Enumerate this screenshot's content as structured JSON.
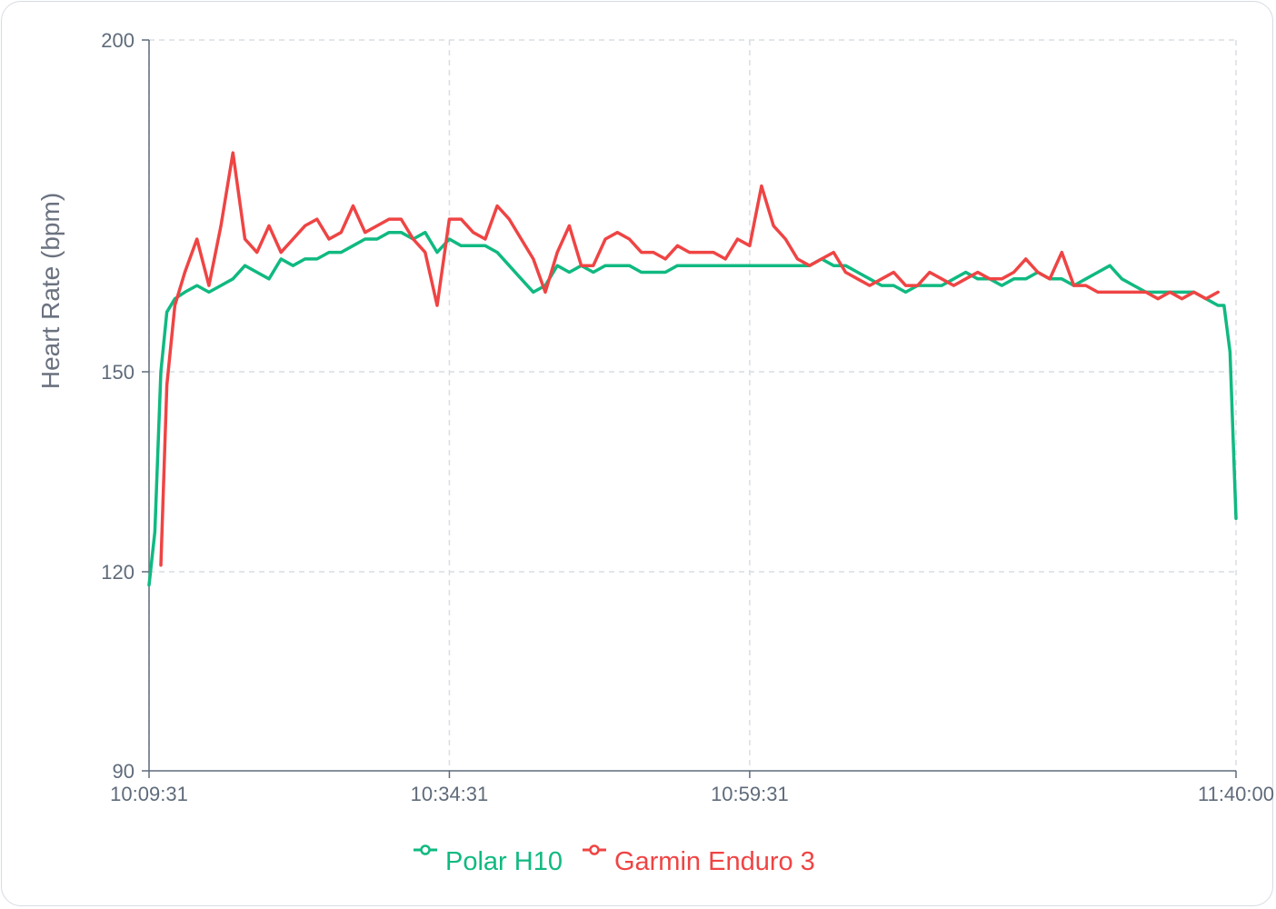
{
  "chart_data": {
    "type": "line",
    "ylabel": "Heart Rate (bpm)",
    "xlabel": "",
    "y_ticks": [
      "200",
      "150",
      "120",
      "90"
    ],
    "x_ticks": [
      "10:09:31",
      "10:34:31",
      "10:59:31",
      "11:40:00"
    ],
    "ylim": [
      90,
      200
    ],
    "xlim": [
      "10:09:31",
      "11:40:00"
    ],
    "grid": true,
    "legend_position": "bottom-center",
    "series": [
      {
        "name": "Polar H10",
        "color": "#10b981",
        "x": [
          "10:09:31",
          "10:10:00",
          "10:10:30",
          "10:11:00",
          "10:11:40",
          "10:12:30",
          "10:13:30",
          "10:14:30",
          "10:15:30",
          "10:16:30",
          "10:17:30",
          "10:18:30",
          "10:19:30",
          "10:20:30",
          "10:21:30",
          "10:22:30",
          "10:23:30",
          "10:24:30",
          "10:25:30",
          "10:26:30",
          "10:27:30",
          "10:28:30",
          "10:29:30",
          "10:30:30",
          "10:31:30",
          "10:32:30",
          "10:33:30",
          "10:34:31",
          "10:35:30",
          "10:36:30",
          "10:37:30",
          "10:38:30",
          "10:39:30",
          "10:40:30",
          "10:41:30",
          "10:42:30",
          "10:43:30",
          "10:44:30",
          "10:45:30",
          "10:46:30",
          "10:47:30",
          "10:48:30",
          "10:49:30",
          "10:50:30",
          "10:51:30",
          "10:52:30",
          "10:53:30",
          "10:54:30",
          "10:55:30",
          "10:56:30",
          "10:57:30",
          "10:58:30",
          "10:59:31",
          "11:00:30",
          "11:01:30",
          "11:02:30",
          "11:03:30",
          "11:04:30",
          "11:05:30",
          "11:06:30",
          "11:07:30",
          "11:08:30",
          "11:09:30",
          "11:10:30",
          "11:11:30",
          "11:12:30",
          "11:13:30",
          "11:14:30",
          "11:15:30",
          "11:16:30",
          "11:17:30",
          "11:18:30",
          "11:19:30",
          "11:20:30",
          "11:21:30",
          "11:22:30",
          "11:23:30",
          "11:24:30",
          "11:25:30",
          "11:26:30",
          "11:27:30",
          "11:28:30",
          "11:29:30",
          "11:30:30",
          "11:31:30",
          "11:32:30",
          "11:33:30",
          "11:34:30",
          "11:35:30",
          "11:36:30",
          "11:37:30",
          "11:38:30",
          "11:39:00",
          "11:39:30",
          "11:40:00"
        ],
        "y": [
          118,
          126,
          150,
          159,
          161,
          162,
          163,
          162,
          163,
          164,
          166,
          165,
          164,
          167,
          166,
          167,
          167,
          168,
          168,
          169,
          170,
          170,
          171,
          171,
          170,
          171,
          168,
          170,
          169,
          169,
          169,
          168,
          166,
          164,
          162,
          163,
          166,
          165,
          166,
          165,
          166,
          166,
          166,
          165,
          165,
          165,
          166,
          166,
          166,
          166,
          166,
          166,
          166,
          166,
          166,
          166,
          166,
          166,
          167,
          166,
          166,
          165,
          164,
          163,
          163,
          162,
          163,
          163,
          163,
          164,
          165,
          164,
          164,
          163,
          164,
          164,
          165,
          164,
          164,
          163,
          164,
          165,
          166,
          164,
          163,
          162,
          162,
          162,
          162,
          162,
          161,
          160,
          160,
          153,
          128
        ]
      },
      {
        "name": "Garmin Enduro 3",
        "color": "#ef4444",
        "x": [
          "10:09:31",
          "10:10:00",
          "10:10:30",
          "10:11:00",
          "10:11:40",
          "10:12:30",
          "10:13:30",
          "10:14:30",
          "10:15:30",
          "10:16:30",
          "10:17:30",
          "10:18:30",
          "10:19:30",
          "10:20:30",
          "10:21:30",
          "10:22:30",
          "10:23:30",
          "10:24:30",
          "10:25:30",
          "10:26:30",
          "10:27:30",
          "10:28:30",
          "10:29:30",
          "10:30:30",
          "10:31:30",
          "10:32:30",
          "10:33:30",
          "10:34:31",
          "10:35:30",
          "10:36:30",
          "10:37:30",
          "10:38:30",
          "10:39:30",
          "10:40:30",
          "10:41:30",
          "10:42:30",
          "10:43:30",
          "10:44:30",
          "10:45:30",
          "10:46:30",
          "10:47:30",
          "10:48:30",
          "10:49:30",
          "10:50:30",
          "10:51:30",
          "10:52:30",
          "10:53:30",
          "10:54:30",
          "10:55:30",
          "10:56:30",
          "10:57:30",
          "10:58:30",
          "10:59:31",
          "11:00:30",
          "11:01:30",
          "11:02:30",
          "11:03:30",
          "11:04:30",
          "11:05:30",
          "11:06:30",
          "11:07:30",
          "11:08:30",
          "11:09:30",
          "11:10:30",
          "11:11:30",
          "11:12:30",
          "11:13:30",
          "11:14:30",
          "11:15:30",
          "11:16:30",
          "11:17:30",
          "11:18:30",
          "11:19:30",
          "11:20:30",
          "11:21:30",
          "11:22:30",
          "11:23:30",
          "11:24:30",
          "11:25:30",
          "11:26:30",
          "11:27:30",
          "11:28:30",
          "11:29:30",
          "11:30:30",
          "11:31:30",
          "11:32:30",
          "11:33:30",
          "11:34:30",
          "11:35:30",
          "11:36:30",
          "11:37:30",
          "11:38:30",
          "11:39:00",
          "11:39:30",
          "11:40:00"
        ],
        "y": [
          null,
          null,
          121,
          148,
          160,
          165,
          170,
          163,
          172,
          183,
          170,
          168,
          172,
          168,
          170,
          172,
          173,
          170,
          171,
          175,
          171,
          172,
          173,
          173,
          170,
          168,
          160,
          173,
          173,
          171,
          170,
          175,
          173,
          170,
          167,
          162,
          168,
          172,
          166,
          166,
          170,
          171,
          170,
          168,
          168,
          167,
          169,
          168,
          168,
          168,
          167,
          170,
          169,
          178,
          172,
          170,
          167,
          166,
          167,
          168,
          165,
          164,
          163,
          164,
          165,
          163,
          163,
          165,
          164,
          163,
          164,
          165,
          164,
          164,
          165,
          167,
          165,
          164,
          168,
          163,
          163,
          162,
          162,
          162,
          162,
          162,
          161,
          162,
          161,
          162,
          161,
          162,
          null,
          null,
          null
        ]
      }
    ]
  }
}
